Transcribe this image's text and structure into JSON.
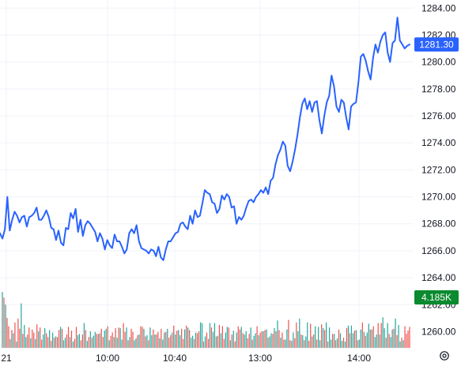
{
  "colors": {
    "line": "#2962ff",
    "grid": "#f0f3fa",
    "volume_up": "#26a69a",
    "volume_down": "#ef5350",
    "price_badge": "#2962ff",
    "volume_badge": "#0b8a2f",
    "text": "#131722"
  },
  "chart_data": {
    "type": "line",
    "y_axis": {
      "ticks": [
        "1284.00",
        "1282.00",
        "1280.00",
        "1278.00",
        "1276.00",
        "1274.00",
        "1272.00",
        "1270.00",
        "1268.00",
        "1266.00",
        "1264.00",
        "1262.00",
        "1260.00"
      ],
      "range": [
        1258.8,
        1284.6
      ],
      "position": "right"
    },
    "x_axis": {
      "ticks": [
        "21",
        "10:00",
        "10:40",
        "13:00",
        "14:00"
      ]
    },
    "grid": true,
    "last_price_label": "1281.30",
    "volume_label": "4.185K",
    "series": [
      {
        "values": [
          1267.3,
          1266.9,
          1267.6,
          1270.0,
          1267.5,
          1268.3,
          1268.9,
          1268.6,
          1268.1,
          1268.5,
          1268.6,
          1267.8,
          1268.5,
          1268.6,
          1268.8,
          1269.2,
          1268.3,
          1268.3,
          1268.6,
          1269.0,
          1268.5,
          1267.7,
          1267.6,
          1266.8,
          1267.5,
          1266.6,
          1266.4,
          1267.7,
          1267.6,
          1268.8,
          1268.4,
          1269.1,
          1267.4,
          1268.3,
          1267.1,
          1267.9,
          1268.2,
          1268.0,
          1267.7,
          1267.4,
          1266.7,
          1267.3,
          1266.9,
          1266.1,
          1266.8,
          1266.4,
          1266.2,
          1267.2,
          1266.7,
          1266.7,
          1266.3,
          1265.8,
          1266.1,
          1267.3,
          1267.6,
          1267.3,
          1267.9,
          1266.7,
          1266.2,
          1266.1,
          1266.0,
          1265.8,
          1266.1,
          1266.0,
          1265.6,
          1266.3,
          1265.5,
          1265.3,
          1266.1,
          1266.7,
          1266.7,
          1267.0,
          1267.3,
          1267.4,
          1268.0,
          1268.1,
          1267.8,
          1267.6,
          1268.6,
          1268.0,
          1269.0,
          1268.5,
          1268.6,
          1269.5,
          1270.5,
          1270.3,
          1270.2,
          1269.6,
          1269.5,
          1268.8,
          1269.1,
          1270.1,
          1269.8,
          1270.2,
          1270.0,
          1269.2,
          1269.3,
          1268.0,
          1268.5,
          1268.3,
          1268.6,
          1269.2,
          1269.7,
          1269.8,
          1269.6,
          1270.0,
          1270.2,
          1270.5,
          1270.3,
          1270.7,
          1270.2,
          1271.2,
          1271.4,
          1272.4,
          1273.1,
          1273.5,
          1274.1,
          1273.8,
          1272.3,
          1271.9,
          1272.6,
          1273.5,
          1274.6,
          1275.9,
          1276.9,
          1277.3,
          1276.5,
          1277.1,
          1276.3,
          1277.0,
          1277.1,
          1275.7,
          1274.7,
          1276.0,
          1277.0,
          1277.5,
          1279.0,
          1278.2,
          1276.7,
          1276.3,
          1277.2,
          1277.0,
          1275.9,
          1275.0,
          1276.7,
          1276.9,
          1277.0,
          1278.5,
          1280.4,
          1280.6,
          1280.1,
          1279.3,
          1278.7,
          1280.3,
          1281.3,
          1280.7,
          1281.5,
          1282.0,
          1282.2,
          1280.7,
          1280.0,
          1281.4,
          1281.6,
          1283.3,
          1281.6,
          1281.3,
          1281.0,
          1281.2,
          1281.3
        ]
      }
    ],
    "volume": {
      "values": [
        88,
        79,
        68,
        47,
        34,
        14,
        28,
        23,
        40,
        10,
        46,
        30,
        70,
        22,
        36,
        17,
        21,
        32,
        15,
        29,
        24,
        14,
        37,
        26,
        32,
        13,
        21,
        31,
        23,
        17,
        28,
        11,
        24,
        16,
        18,
        17,
        28,
        33,
        30,
        12,
        16,
        21,
        33,
        17,
        27,
        10,
        14,
        33,
        20,
        22,
        12,
        21,
        39,
        28,
        11,
        17,
        26,
        16,
        19,
        25,
        22,
        22,
        23,
        30,
        17,
        27,
        30,
        34,
        12,
        19,
        24,
        17,
        31,
        16,
        32,
        31,
        13,
        39,
        25,
        32,
        12,
        17,
        30,
        25,
        12,
        15,
        20,
        21,
        34,
        33,
        30,
        18,
        20,
        12,
        32,
        20,
        29,
        21,
        21,
        25,
        15,
        30,
        13,
        24,
        25,
        30,
        16,
        20,
        24,
        35,
        21,
        27,
        28,
        20,
        30,
        14,
        29,
        35,
        32,
        28,
        16,
        19,
        14,
        24,
        23,
        26,
        40,
        39,
        10,
        18,
        24,
        14,
        39,
        32,
        25,
        39,
        18,
        19,
        36,
        23,
        34,
        14,
        24,
        33,
        32,
        12,
        21,
        27,
        10,
        24,
        34,
        29,
        33,
        23,
        21,
        26,
        15,
        22,
        32,
        13,
        19,
        23,
        34,
        20,
        24,
        26,
        26,
        28,
        29,
        16,
        18,
        23,
        22,
        31,
        26,
        43,
        28,
        16,
        24,
        13,
        13,
        29,
        44,
        12,
        11,
        24,
        15,
        40,
        26,
        46,
        21,
        20,
        12,
        18,
        40,
        11,
        38,
        18,
        21,
        34,
        13,
        33,
        12,
        37,
        31,
        28,
        40,
        10,
        32,
        13,
        22,
        22,
        12,
        15,
        29,
        23,
        11,
        16,
        10,
        31,
        35,
        23,
        35,
        23,
        27,
        28,
        12,
        13,
        29,
        40,
        25,
        19,
        24,
        38,
        29,
        29,
        34,
        17,
        21,
        39,
        21,
        39,
        48,
        31,
        16,
        39,
        22,
        17,
        29,
        30,
        46,
        20,
        36,
        10,
        16,
        12,
        34,
        22,
        27,
        33
      ],
      "up": [
        1,
        0,
        1,
        0,
        0,
        1,
        0,
        1,
        0,
        1,
        0,
        0,
        1,
        0,
        1,
        1,
        0,
        0,
        1,
        0,
        0,
        1,
        0,
        1,
        0,
        0,
        1,
        1,
        0,
        0,
        1,
        0,
        1,
        0,
        1,
        0,
        0,
        1,
        0,
        1,
        1,
        0,
        0,
        1,
        0,
        1,
        0,
        0,
        1,
        1,
        0,
        0,
        1,
        0,
        1,
        0,
        1,
        0,
        1,
        1,
        0,
        0,
        1,
        0,
        0,
        1,
        1,
        0,
        1,
        0,
        0,
        1,
        0,
        1,
        0,
        1,
        1,
        0,
        0,
        1,
        0,
        1,
        0,
        0,
        1,
        1,
        0,
        1,
        0,
        0,
        1,
        0,
        1,
        0,
        1,
        1,
        0,
        1,
        0,
        0,
        1,
        0,
        1,
        1,
        0,
        1,
        0,
        0,
        1,
        0,
        1,
        0,
        1,
        1,
        0,
        0,
        1,
        0,
        1,
        0,
        1,
        1,
        0,
        1,
        0,
        0,
        1,
        1,
        0,
        1,
        0,
        0,
        1,
        0,
        1,
        1,
        0,
        1,
        0,
        1,
        0,
        0,
        1,
        1,
        0,
        1,
        0,
        1,
        0,
        1,
        0,
        0,
        1,
        0,
        1,
        1,
        0,
        0,
        1,
        0,
        1,
        1,
        0,
        1,
        0,
        0,
        1,
        0,
        1,
        0,
        1,
        1,
        0,
        1,
        0,
        1,
        0,
        1,
        0,
        0,
        1,
        1,
        0,
        1,
        0,
        1,
        0,
        0,
        1,
        1,
        0,
        1,
        0,
        1,
        1,
        0,
        0,
        1,
        0,
        1,
        0,
        1,
        1,
        0,
        1,
        0,
        1,
        0,
        1,
        1,
        0,
        1,
        0,
        1,
        0,
        1,
        1,
        0,
        1,
        0,
        1,
        0,
        1,
        1,
        0,
        1,
        0,
        1,
        1,
        0,
        1,
        0,
        1,
        1,
        0,
        1,
        0,
        1,
        1,
        0,
        1,
        0,
        1,
        1,
        0,
        1,
        0,
        1,
        1,
        0,
        1,
        0,
        1,
        1,
        0,
        1
      ]
    }
  }
}
